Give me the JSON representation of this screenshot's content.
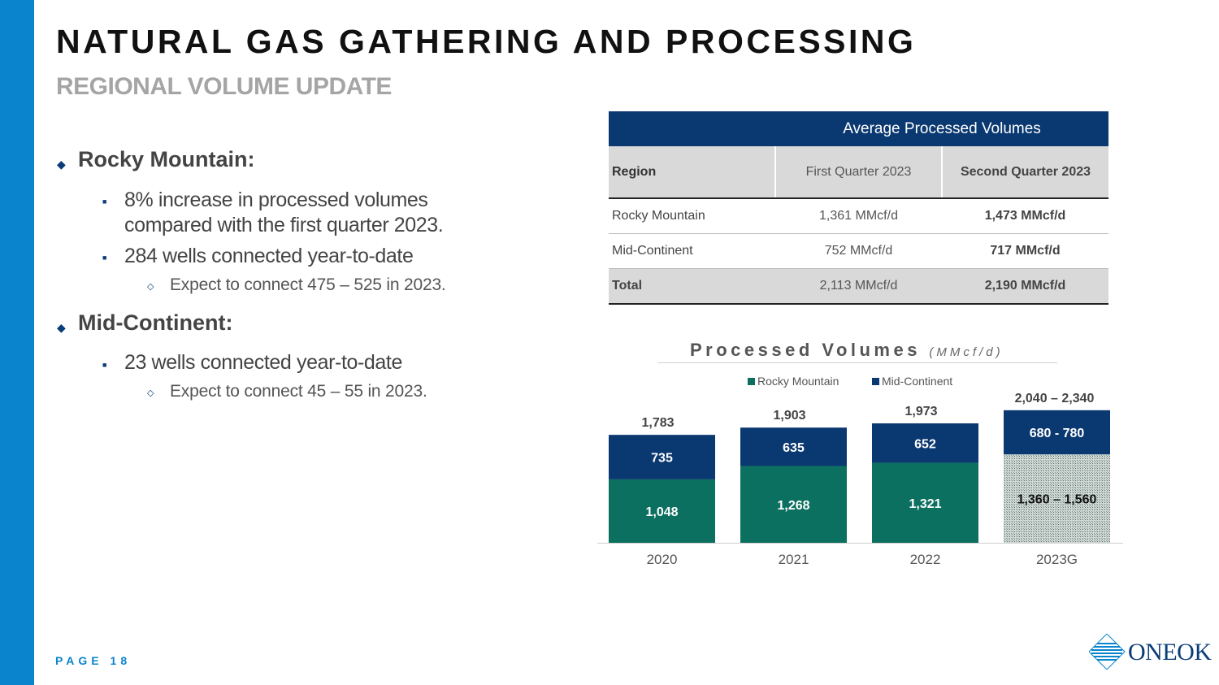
{
  "slide": {
    "title": "NATURAL GAS GATHERING AND PROCESSING",
    "subtitle": "REGIONAL VOLUME UPDATE",
    "page_label": "PAGE 18",
    "logo_text": "ONEOK"
  },
  "bullets": {
    "rocky": {
      "heading": "Rocky Mountain:",
      "point1": "8% increase in processed volumes compared with the first quarter 2023.",
      "point2": "284 wells connected year-to-date",
      "sub1": "Expect to connect 475 – 525 in 2023."
    },
    "midcon": {
      "heading": "Mid-Continent:",
      "point1": "23 wells connected year-to-date",
      "sub1": "Expect to connect 45 – 55 in 2023."
    }
  },
  "table": {
    "banner": "Average Processed Volumes",
    "col_region": "Region",
    "col_q1": "First Quarter 2023",
    "col_q2": "Second Quarter 2023",
    "rows": [
      {
        "region": "Rocky Mountain",
        "q1": "1,361 MMcf/d",
        "q2": "1,473 MMcf/d"
      },
      {
        "region": "Mid-Continent",
        "q1": "752 MMcf/d",
        "q2": "717 MMcf/d"
      },
      {
        "region": "Total",
        "q1": "2,113 MMcf/d",
        "q2": "2,190 MMcf/d"
      }
    ]
  },
  "colors": {
    "rocky": "#0c7060",
    "midcon": "#0a3870",
    "accent": "#0a84cc"
  },
  "chart_data": {
    "type": "bar",
    "stacked": true,
    "title": "Processed Volumes",
    "unit_label": "(MMcf/d)",
    "categories": [
      "2020",
      "2021",
      "2022",
      "2023G"
    ],
    "series": [
      {
        "name": "Rocky Mountain",
        "values": [
          1048,
          1268,
          1321,
          1460
        ],
        "labels": [
          "1,048",
          "1,268",
          "1,321",
          "1,360 – 1,560"
        ]
      },
      {
        "name": "Mid-Continent",
        "values": [
          735,
          635,
          652,
          730
        ],
        "labels": [
          "735",
          "635",
          "652",
          "680 - 780"
        ]
      }
    ],
    "totals": [
      "1,783",
      "1,903",
      "1,973",
      "2,040 – 2,340"
    ],
    "guidance_category": "2023G",
    "ylim": [
      0,
      2500
    ],
    "legend": "top",
    "grid": false
  }
}
